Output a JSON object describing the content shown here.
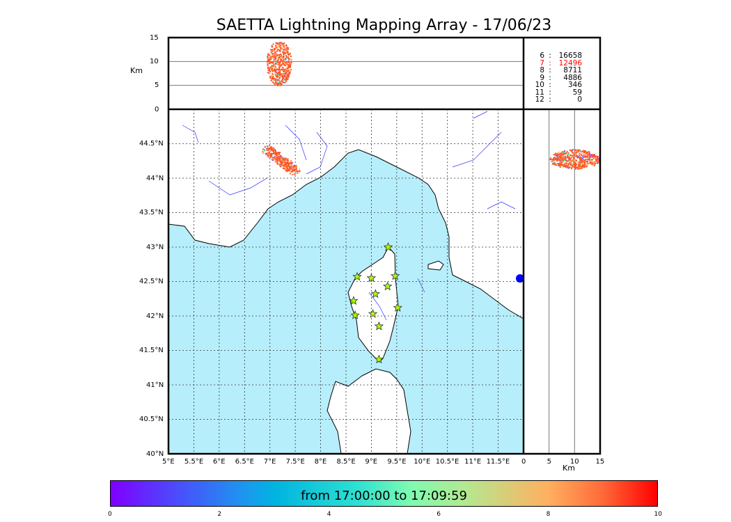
{
  "title": "SAETTA Lightning Mapping Array - 17/06/23",
  "colors": {
    "sea": "#b7eefc",
    "river": "#3333ff",
    "highlight": "#ff0000",
    "core": "#ff5522"
  },
  "legend": [
    {
      "level": "6",
      "count": "16658"
    },
    {
      "level": "7",
      "count": "12496",
      "highlight": true
    },
    {
      "level": "8",
      "count": "8711"
    },
    {
      "level": "9",
      "count": "4886"
    },
    {
      "level": "10",
      "count": "346"
    },
    {
      "level": "11",
      "count": "59"
    },
    {
      "level": "12",
      "count": "0"
    }
  ],
  "chart_data": {
    "type": "scatter",
    "title": "SAETTA Lightning Mapping Array - 17/06/23",
    "map": {
      "xlim": [
        5,
        12
      ],
      "ylim": [
        40,
        45
      ],
      "xticks": [
        "5°E",
        "5.5°E",
        "6°E",
        "6.5°E",
        "7°E",
        "7.5°E",
        "8°E",
        "8.5°E",
        "9°E",
        "9.5°E",
        "10°E",
        "10.5°E",
        "11°E",
        "11.5°E"
      ],
      "yticks": [
        "40°N",
        "40.5°N",
        "41°N",
        "41.5°N",
        "42°N",
        "42.5°N",
        "43°N",
        "43.5°N",
        "44°N",
        "44.5°N"
      ]
    },
    "altitude_panel": {
      "ylabel": "Km",
      "ylim": [
        0,
        15
      ],
      "yticks": [
        "0",
        "5",
        "10",
        "15"
      ]
    },
    "side_panel": {
      "xlabel": "Km",
      "xlim": [
        0,
        15
      ],
      "xticks": [
        "0",
        "5",
        "10",
        "15"
      ]
    },
    "stations": [
      [
        9.33,
        43.0
      ],
      [
        8.72,
        42.57
      ],
      [
        9.0,
        42.55
      ],
      [
        9.47,
        42.58
      ],
      [
        9.32,
        42.43
      ],
      [
        9.08,
        42.32
      ],
      [
        8.65,
        42.22
      ],
      [
        9.52,
        42.12
      ],
      [
        9.03,
        42.03
      ],
      [
        8.68,
        42.01
      ],
      [
        9.15,
        41.85
      ],
      [
        9.15,
        41.37
      ]
    ],
    "sources_center": {
      "lon": 7.2,
      "lat": 44.35,
      "alt_range_km": [
        5,
        15
      ]
    },
    "colorbar": {
      "range": [
        0,
        10
      ],
      "ticks": [
        "0",
        "2",
        "4",
        "6",
        "8",
        "10"
      ],
      "label": "from 17:00:00 to 17:09:59"
    }
  }
}
